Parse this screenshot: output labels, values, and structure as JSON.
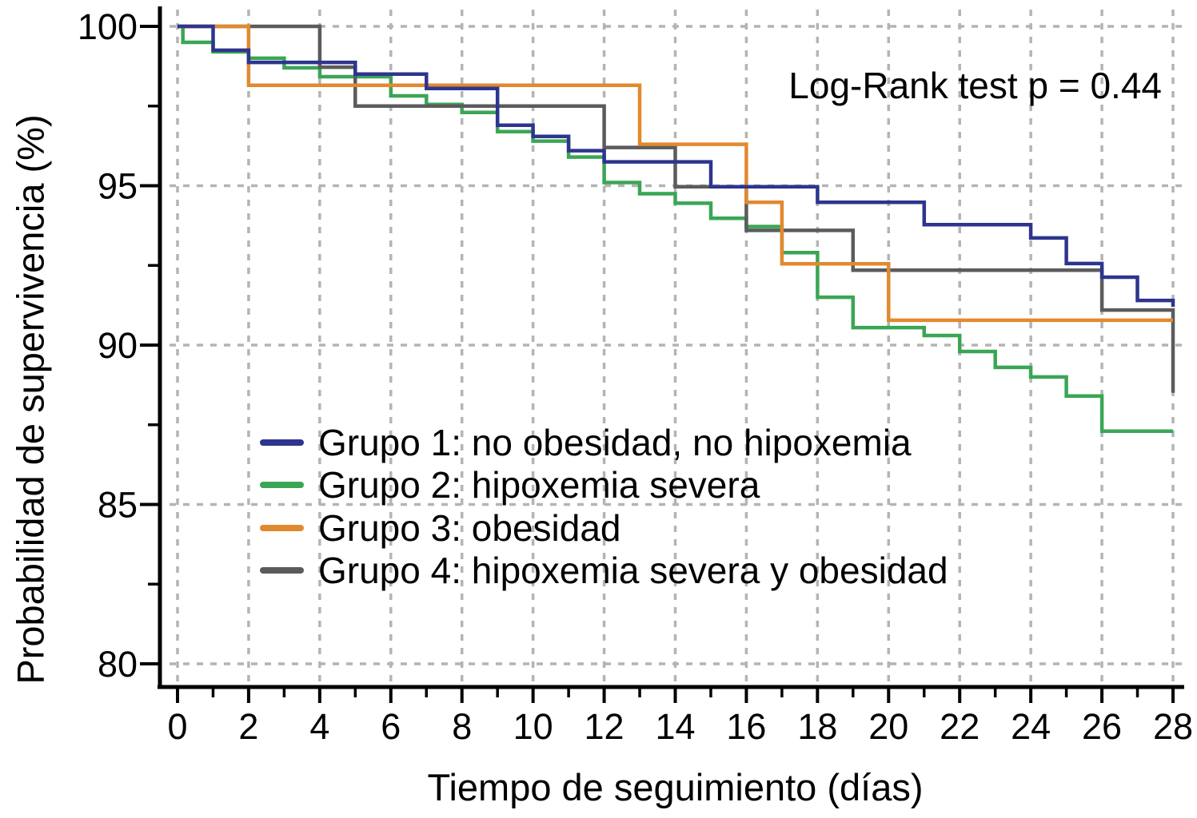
{
  "chart_data": {
    "type": "line",
    "subtype": "kaplan-meier-step-survival",
    "title": "",
    "xlabel": "Tiempo de seguimiento (días)",
    "ylabel": "Probabilidad de supervivencia (%)",
    "annotation": "Log-Rank test p = 0.44",
    "xlim": [
      0,
      28
    ],
    "ylim": [
      80,
      100
    ],
    "grid": "dashed light-gray at major ticks, both axes",
    "legend_position": "inside lower-left, no frame",
    "x_ticks": [
      0,
      2,
      4,
      6,
      8,
      10,
      12,
      14,
      16,
      18,
      20,
      22,
      24,
      26,
      28
    ],
    "x_tick_labels": [
      "0",
      "2",
      "4",
      "6",
      "8",
      "10",
      "12",
      "14",
      "16",
      "18",
      "20",
      "22",
      "24",
      "26",
      "28"
    ],
    "x_minor_ticks": [
      1,
      3,
      5,
      7,
      9,
      11,
      13,
      15,
      17,
      19,
      21,
      23,
      25,
      27
    ],
    "y_ticks": [
      100,
      95,
      90,
      85,
      80
    ],
    "y_tick_labels": [
      "100",
      "95",
      "90",
      "85",
      "80"
    ],
    "y_minor_ticks": [
      97.5,
      92.5,
      87.5,
      82.5
    ],
    "draw_order": [
      1,
      3,
      2,
      0
    ],
    "series": [
      {
        "name": "Grupo 1",
        "label": "Grupo 1: no obesidad, no hipoxemia",
        "color": "#2d358e",
        "steps": [
          [
            0,
            100
          ],
          [
            1,
            99.25
          ],
          [
            2,
            98.87
          ],
          [
            5,
            98.5
          ],
          [
            7,
            98.05
          ],
          [
            9,
            96.9
          ],
          [
            10,
            96.55
          ],
          [
            11,
            96.1
          ],
          [
            12,
            95.75
          ],
          [
            15,
            94.97
          ],
          [
            18,
            94.48
          ],
          [
            21,
            93.78
          ],
          [
            24,
            93.36
          ],
          [
            25,
            92.56
          ],
          [
            26,
            92.13
          ],
          [
            27,
            91.4
          ],
          [
            28,
            91.2
          ]
        ]
      },
      {
        "name": "Grupo 2",
        "label": "Grupo 2: hipoxemia severa",
        "color": "#3aa655",
        "steps": [
          [
            0,
            100
          ],
          [
            0.15,
            99.5
          ],
          [
            1,
            99.2
          ],
          [
            2,
            99.0
          ],
          [
            3,
            98.7
          ],
          [
            4,
            98.42
          ],
          [
            6,
            97.82
          ],
          [
            7,
            97.55
          ],
          [
            8,
            97.3
          ],
          [
            9,
            96.7
          ],
          [
            10,
            96.4
          ],
          [
            11,
            95.9
          ],
          [
            12,
            95.1
          ],
          [
            13,
            94.75
          ],
          [
            14,
            94.45
          ],
          [
            15,
            93.98
          ],
          [
            16,
            93.72
          ],
          [
            17,
            92.9
          ],
          [
            18,
            91.5
          ],
          [
            19,
            90.55
          ],
          [
            21,
            90.3
          ],
          [
            22,
            89.8
          ],
          [
            23,
            89.3
          ],
          [
            24,
            89.0
          ],
          [
            25,
            88.4
          ],
          [
            26,
            87.3
          ],
          [
            28,
            87.3
          ]
        ]
      },
      {
        "name": "Grupo 3",
        "label": "Grupo 3: obesidad",
        "color": "#e2892f",
        "steps": [
          [
            0,
            100
          ],
          [
            2,
            98.15
          ],
          [
            13,
            96.3
          ],
          [
            16,
            94.48
          ],
          [
            17,
            92.55
          ],
          [
            20,
            90.78
          ],
          [
            28,
            90.78
          ]
        ]
      },
      {
        "name": "Grupo 4",
        "label": "Grupo 4: hipoxemia severa y obesidad",
        "color": "#5b5b5d",
        "steps": [
          [
            0,
            100
          ],
          [
            4,
            98.72
          ],
          [
            5,
            97.5
          ],
          [
            12,
            96.2
          ],
          [
            14,
            94.97
          ],
          [
            16,
            93.6
          ],
          [
            19,
            92.35
          ],
          [
            26,
            91.1
          ],
          [
            28,
            88.5
          ]
        ]
      }
    ]
  }
}
